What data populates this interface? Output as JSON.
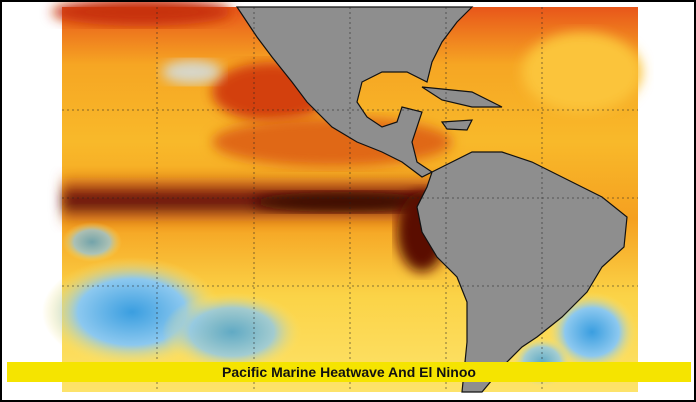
{
  "caption": "Pacific Marine Heatwave And El Ninoo"
}
